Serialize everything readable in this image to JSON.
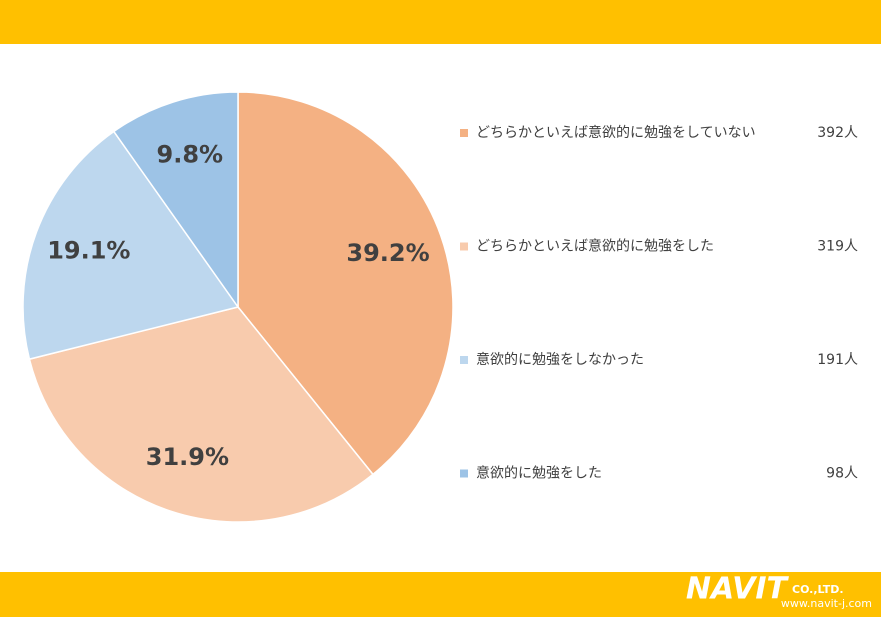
{
  "chart_data": {
    "type": "pie",
    "categories": [
      "どちらかといえば意欲的に勉強をしていない",
      "どちらかといえば意欲的に勉強をした",
      "意欲的に勉強をしなかった",
      "意欲的に勉強をした"
    ],
    "values": [
      39.2,
      31.9,
      19.1,
      9.8
    ],
    "value_labels": [
      "39.2%",
      "31.9%",
      "19.1%",
      "9.8%"
    ],
    "count_labels": [
      "392人",
      "319人",
      "191人",
      "98人"
    ],
    "colors": [
      "#f4b183",
      "#f8cbad",
      "#bdd7ee",
      "#9dc3e6"
    ],
    "legend": "right"
  },
  "footer": {
    "logo": "NAVIT",
    "company": "CO.,LTD.",
    "url": "www.navit-j.com"
  }
}
